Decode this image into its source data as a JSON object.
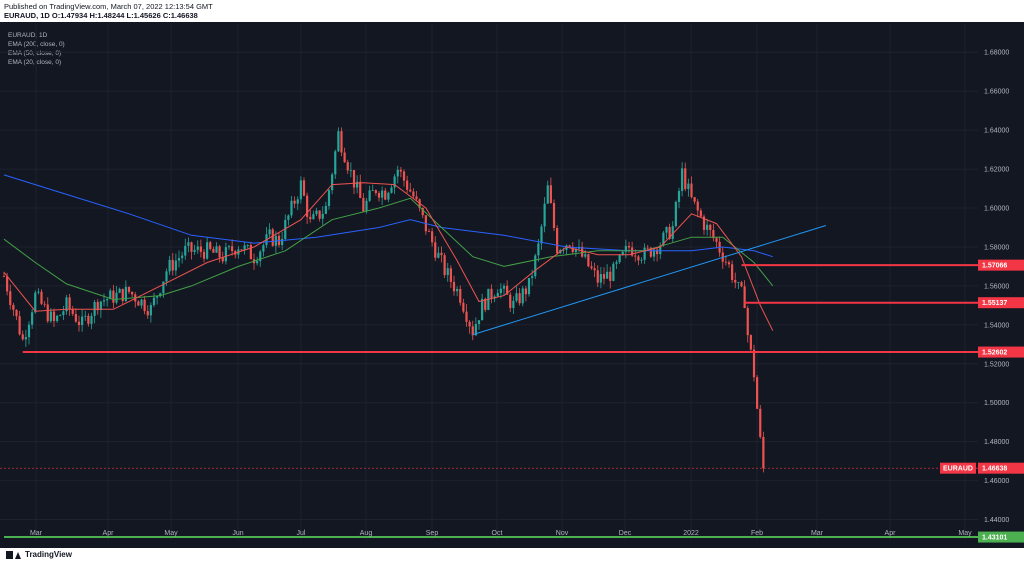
{
  "header": {
    "published_line": "Published on TradingView.com, March 07, 2022 12:13:54 GMT",
    "ohlc_line": "EURAUD, 1D  O:1.47934 H:1.48244 L:1.45626 C:1.46638"
  },
  "legend": {
    "symbol": "EURAUD, 1D",
    "studies": [
      "EMA (200, close, 0)",
      "EMA (50, close, 0)",
      "EMA (20, close, 0)"
    ]
  },
  "footer": {
    "brand": "TradingView"
  },
  "colors": {
    "background": "#131722",
    "up": "#26a69a",
    "down": "#ef5350",
    "ema200": "#2962ff",
    "ema50": "#43a047",
    "ema20": "#ef5350",
    "hline": "#f23645",
    "support": "#4caf50",
    "trend": "#2196f3"
  },
  "chart_data": {
    "type": "candlestick",
    "symbol": "EURAUD",
    "timeframe": "1D",
    "ylim": [
      1.4295,
      1.6945
    ],
    "y_ticks": [
      "1.68000",
      "1.66000",
      "1.64000",
      "1.62000",
      "1.60000",
      "1.58000",
      "1.56000",
      "1.54000",
      "1.52000",
      "1.50000",
      "1.48000",
      "1.46000",
      "1.44000"
    ],
    "x_ticks": [
      "Mar",
      "Apr",
      "May",
      "Jun",
      "Jul",
      "Aug",
      "Sep",
      "Oct",
      "Nov",
      "Dec",
      "2022",
      "Feb",
      "Mar",
      "Apr",
      "May"
    ],
    "price_path": [
      [
        0,
        1.565
      ],
      [
        6,
        1.532
      ],
      [
        10,
        1.555
      ],
      [
        16,
        1.541
      ],
      [
        20,
        1.55
      ],
      [
        25,
        1.54
      ],
      [
        30,
        1.552
      ],
      [
        40,
        1.557
      ],
      [
        47,
        1.548
      ],
      [
        52,
        1.568
      ],
      [
        58,
        1.578
      ],
      [
        65,
        1.578
      ],
      [
        70,
        1.575
      ],
      [
        75,
        1.581
      ],
      [
        80,
        1.575
      ],
      [
        85,
        1.585
      ],
      [
        88,
        1.583
      ],
      [
        95,
        1.612
      ],
      [
        98,
        1.592
      ],
      [
        103,
        1.6
      ],
      [
        107,
        1.638
      ],
      [
        111,
        1.618
      ],
      [
        115,
        1.6
      ],
      [
        119,
        1.61
      ],
      [
        122,
        1.608
      ],
      [
        126,
        1.62
      ],
      [
        131,
        1.606
      ],
      [
        136,
        1.586
      ],
      [
        141,
        1.568
      ],
      [
        146,
        1.555
      ],
      [
        150,
        1.537
      ],
      [
        153,
        1.55
      ],
      [
        158,
        1.56
      ],
      [
        163,
        1.55
      ],
      [
        168,
        1.56
      ],
      [
        171,
        1.58
      ],
      [
        174,
        1.61
      ],
      [
        177,
        1.58
      ],
      [
        181,
        1.583
      ],
      [
        185,
        1.575
      ],
      [
        190,
        1.563
      ],
      [
        195,
        1.567
      ],
      [
        200,
        1.58
      ],
      [
        205,
        1.576
      ],
      [
        210,
        1.582
      ],
      [
        214,
        1.59
      ],
      [
        217,
        1.618
      ],
      [
        220,
        1.604
      ],
      [
        224,
        1.592
      ],
      [
        228,
        1.582
      ],
      [
        232,
        1.57
      ],
      [
        235,
        1.558
      ],
      [
        237,
        1.553
      ],
      [
        238,
        1.535
      ],
      [
        239,
        1.525
      ],
      [
        240,
        1.515
      ],
      [
        241,
        1.497
      ],
      [
        242,
        1.48
      ],
      [
        243,
        1.466
      ]
    ],
    "ema200_path": [
      [
        0,
        1.617
      ],
      [
        20,
        1.607
      ],
      [
        40,
        1.597
      ],
      [
        60,
        1.586
      ],
      [
        80,
        1.582
      ],
      [
        100,
        1.585
      ],
      [
        120,
        1.59
      ],
      [
        130,
        1.594
      ],
      [
        140,
        1.59
      ],
      [
        160,
        1.586
      ],
      [
        180,
        1.58
      ],
      [
        200,
        1.578
      ],
      [
        220,
        1.578
      ],
      [
        230,
        1.58
      ],
      [
        240,
        1.578
      ],
      [
        246,
        1.575
      ]
    ],
    "ema50_path": [
      [
        0,
        1.584
      ],
      [
        10,
        1.572
      ],
      [
        20,
        1.561
      ],
      [
        35,
        1.553
      ],
      [
        50,
        1.555
      ],
      [
        60,
        1.56
      ],
      [
        75,
        1.57
      ],
      [
        90,
        1.578
      ],
      [
        105,
        1.594
      ],
      [
        120,
        1.6
      ],
      [
        130,
        1.605
      ],
      [
        140,
        1.59
      ],
      [
        150,
        1.575
      ],
      [
        160,
        1.57
      ],
      [
        175,
        1.575
      ],
      [
        190,
        1.578
      ],
      [
        205,
        1.578
      ],
      [
        220,
        1.585
      ],
      [
        230,
        1.585
      ],
      [
        240,
        1.572
      ],
      [
        246,
        1.56
      ]
    ],
    "ema20_path": [
      [
        0,
        1.567
      ],
      [
        10,
        1.547
      ],
      [
        20,
        1.548
      ],
      [
        35,
        1.548
      ],
      [
        50,
        1.56
      ],
      [
        65,
        1.572
      ],
      [
        80,
        1.58
      ],
      [
        95,
        1.594
      ],
      [
        105,
        1.612
      ],
      [
        115,
        1.613
      ],
      [
        125,
        1.612
      ],
      [
        135,
        1.6
      ],
      [
        145,
        1.573
      ],
      [
        152,
        1.552
      ],
      [
        160,
        1.555
      ],
      [
        170,
        1.568
      ],
      [
        180,
        1.58
      ],
      [
        190,
        1.576
      ],
      [
        200,
        1.576
      ],
      [
        210,
        1.58
      ],
      [
        220,
        1.597
      ],
      [
        228,
        1.592
      ],
      [
        236,
        1.575
      ],
      [
        242,
        1.55
      ],
      [
        246,
        1.537
      ]
    ],
    "horizontal_levels": [
      {
        "value": 1.57066,
        "label": "1.57066",
        "start": 236
      },
      {
        "value": 1.55137,
        "label": "1.55137",
        "start": 237
      },
      {
        "value": 1.52602,
        "label": "1.52602",
        "start": 6
      },
      {
        "value": 1.43101,
        "label": "1.43101",
        "start": 0
      }
    ],
    "trendline": {
      "points": [
        [
          150,
          1.535
        ],
        [
          263,
          1.591
        ]
      ]
    },
    "last_price": {
      "value": 1.46638,
      "label": "1.46638",
      "name": "EURAUD"
    }
  }
}
